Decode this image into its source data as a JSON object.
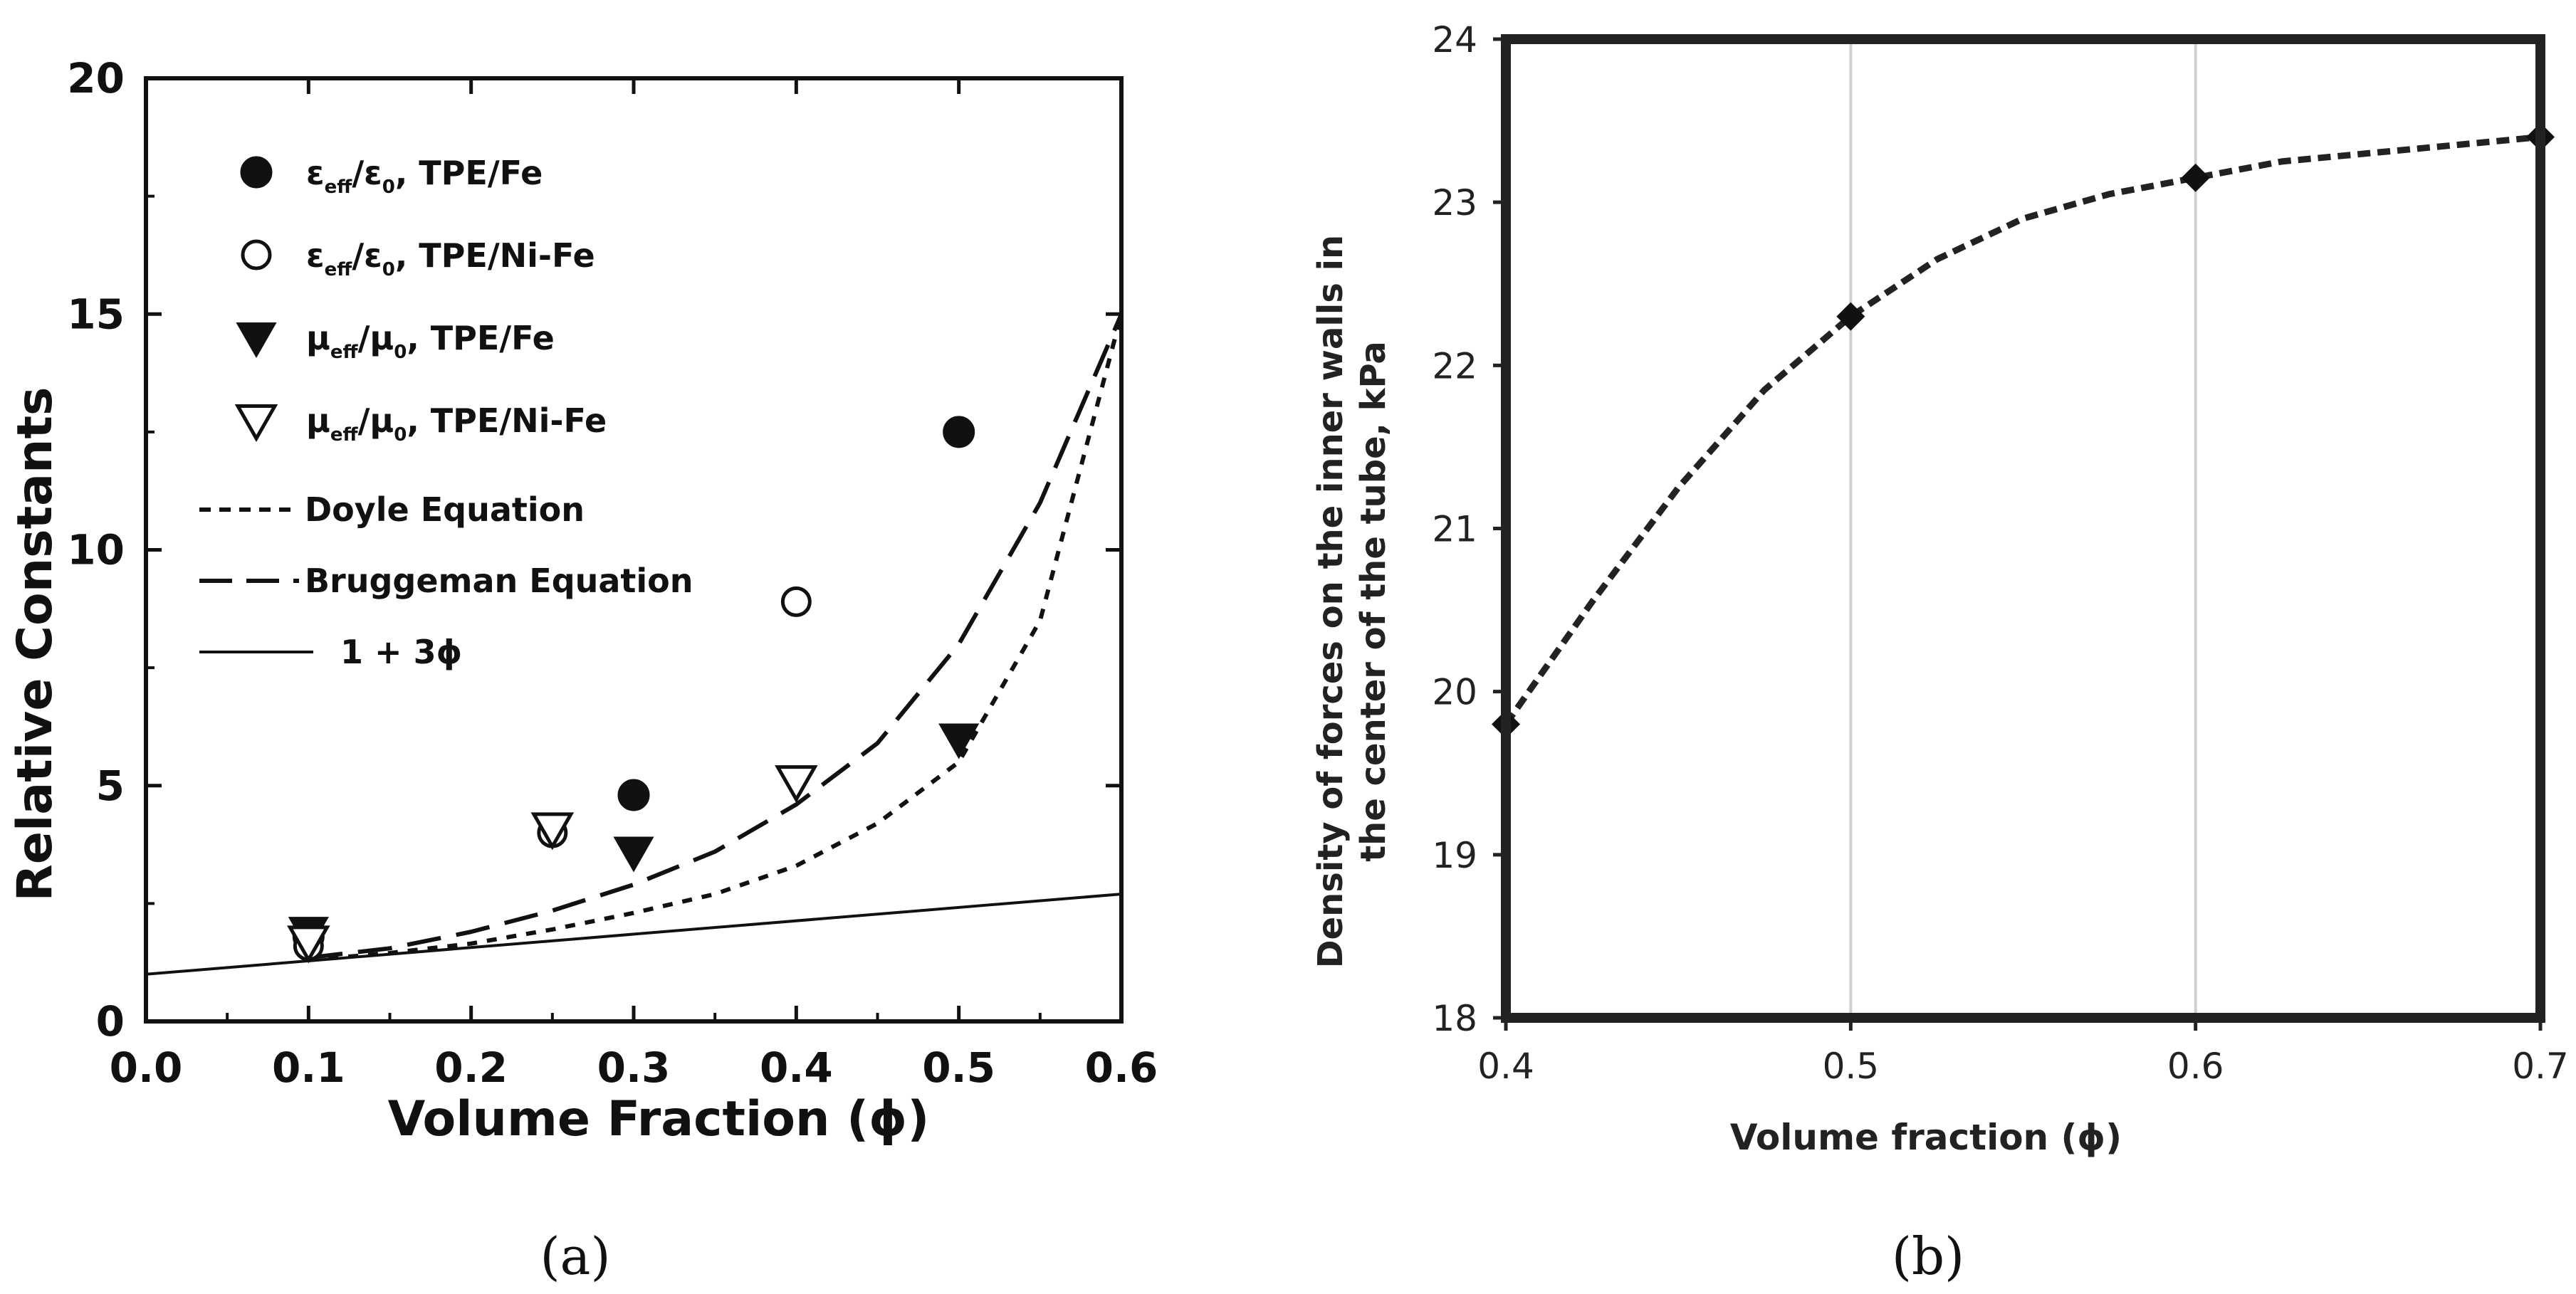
{
  "panels": {
    "a": {
      "caption": "(a)"
    },
    "b": {
      "caption": "(b)"
    }
  },
  "chart_data": [
    {
      "type": "scatter",
      "panel": "a",
      "title": "",
      "xlabel": "Volume Fraction (ϕ)",
      "ylabel": "Relative Constants",
      "xlim": [
        0.0,
        0.6
      ],
      "ylim": [
        0,
        20
      ],
      "xticks": [
        "0.0",
        "0.1",
        "0.2",
        "0.3",
        "0.4",
        "0.5",
        "0.6"
      ],
      "yticks": [
        "0",
        "5",
        "10",
        "15",
        "20"
      ],
      "grid": false,
      "legend_position": "top-left",
      "series": [
        {
          "name": "ε_eff/ε_0, TPE/Fe",
          "label_main": "ε",
          "sub1": "eff",
          "mid": "/ε",
          "sub2": "0",
          "tail": ", TPE/Fe",
          "marker": "filled-circle",
          "x": [
            0.1,
            0.3,
            0.5
          ],
          "y": [
            1.8,
            4.8,
            12.5
          ]
        },
        {
          "name": "ε_eff/ε_0, TPE/Ni-Fe",
          "label_main": "ε",
          "sub1": "eff",
          "mid": "/ε",
          "sub2": "0",
          "tail": ", TPE/Ni-Fe",
          "marker": "open-circle",
          "x": [
            0.1,
            0.25,
            0.4
          ],
          "y": [
            1.6,
            4.0,
            8.9
          ]
        },
        {
          "name": "μ_eff/μ_0, TPE/Fe",
          "label_main": "μ",
          "sub1": "eff",
          "mid": "/μ",
          "sub2": "0",
          "tail": ", TPE/Fe",
          "marker": "filled-triangle-down",
          "x": [
            0.1,
            0.3,
            0.5
          ],
          "y": [
            1.9,
            3.6,
            6.0
          ]
        },
        {
          "name": "μ_eff/μ_0, TPE/Ni-Fe",
          "label_main": "μ",
          "sub1": "eff",
          "mid": "/μ",
          "sub2": "0",
          "tail": ", TPE/Ni-Fe",
          "marker": "open-triangle-down",
          "x": [
            0.1,
            0.25,
            0.4
          ],
          "y": [
            1.7,
            4.1,
            5.1
          ]
        }
      ],
      "lines": [
        {
          "name": "Doyle Equation",
          "style": "short-dash",
          "x": [
            0.1,
            0.15,
            0.2,
            0.25,
            0.3,
            0.35,
            0.4,
            0.45,
            0.5,
            0.55,
            0.6
          ],
          "y": [
            1.3,
            1.45,
            1.65,
            1.95,
            2.3,
            2.7,
            3.3,
            4.2,
            5.5,
            8.5,
            15.0
          ]
        },
        {
          "name": "Bruggeman Equation",
          "style": "long-dash",
          "x": [
            0.1,
            0.15,
            0.2,
            0.25,
            0.3,
            0.35,
            0.4,
            0.45,
            0.5,
            0.55,
            0.6
          ],
          "y": [
            1.35,
            1.55,
            1.9,
            2.35,
            2.9,
            3.6,
            4.6,
            5.9,
            8.0,
            11.0,
            15.0
          ]
        },
        {
          "name": "1 + 3ϕ",
          "style": "solid",
          "x": [
            0.0,
            0.6
          ],
          "y": [
            1.0,
            2.7
          ]
        }
      ]
    },
    {
      "type": "line",
      "panel": "b",
      "title": "",
      "xlabel": "Volume fraction (ϕ)",
      "ylabel_line1": "Density of forces on the inner walls in",
      "ylabel_line2": "the center of the tube, kPa",
      "xlim": [
        0.4,
        0.7
      ],
      "ylim": [
        18,
        24
      ],
      "xticks": [
        "0.4",
        "0.5",
        "0.6",
        "0.7"
      ],
      "yticks": [
        "18",
        "19",
        "20",
        "21",
        "22",
        "23",
        "24"
      ],
      "grid": "vertical",
      "series": [
        {
          "name": "Density of forces",
          "style": "dashed",
          "marker": "filled-diamond",
          "x": [
            0.4,
            0.5,
            0.6,
            0.7
          ],
          "y": [
            19.8,
            22.3,
            23.15,
            23.4
          ],
          "curve_x": [
            0.4,
            0.425,
            0.45,
            0.475,
            0.5,
            0.525,
            0.55,
            0.575,
            0.6,
            0.625,
            0.65,
            0.675,
            0.7
          ],
          "curve_y": [
            19.8,
            20.55,
            21.25,
            21.85,
            22.3,
            22.65,
            22.9,
            23.05,
            23.15,
            23.25,
            23.3,
            23.35,
            23.4
          ]
        }
      ]
    }
  ]
}
